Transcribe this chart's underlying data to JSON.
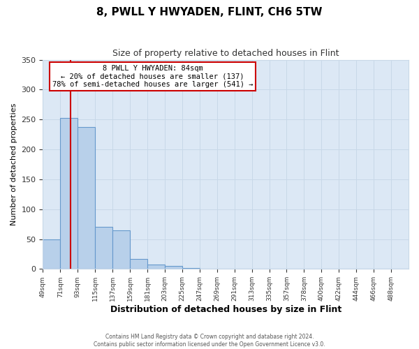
{
  "title": "8, PWLL Y HWYADEN, FLINT, CH6 5TW",
  "subtitle": "Size of property relative to detached houses in Flint",
  "xlabel": "Distribution of detached houses by size in Flint",
  "ylabel": "Number of detached properties",
  "footnote1": "Contains HM Land Registry data © Crown copyright and database right 2024.",
  "footnote2": "Contains public sector information licensed under the Open Government Licence v3.0.",
  "bar_labels": [
    "49sqm",
    "71sqm",
    "93sqm",
    "115sqm",
    "137sqm",
    "159sqm",
    "181sqm",
    "203sqm",
    "225sqm",
    "247sqm",
    "269sqm",
    "291sqm",
    "313sqm",
    "335sqm",
    "357sqm",
    "378sqm",
    "400sqm",
    "422sqm",
    "444sqm",
    "466sqm",
    "488sqm"
  ],
  "bar_values": [
    50,
    252,
    237,
    70,
    65,
    17,
    7,
    5,
    2,
    0,
    0,
    0,
    0,
    0,
    0,
    0,
    0,
    0,
    0,
    0,
    0
  ],
  "bar_color": "#b8d0ea",
  "bar_edge_color": "#6699cc",
  "ylim": [
    0,
    350
  ],
  "yticks": [
    0,
    50,
    100,
    150,
    200,
    250,
    300,
    350
  ],
  "property_label": "8 PWLL Y HWYADEN: 84sqm",
  "annotation_line1": "← 20% of detached houses are smaller (137)",
  "annotation_line2": "78% of semi-detached houses are larger (541) →",
  "red_line_x": 84,
  "annotation_box_color": "#ffffff",
  "annotation_box_edge": "#cc0000",
  "red_line_color": "#cc0000",
  "grid_color": "#c8d8e8",
  "background_color": "#ffffff",
  "plot_bg_color": "#dce8f5"
}
